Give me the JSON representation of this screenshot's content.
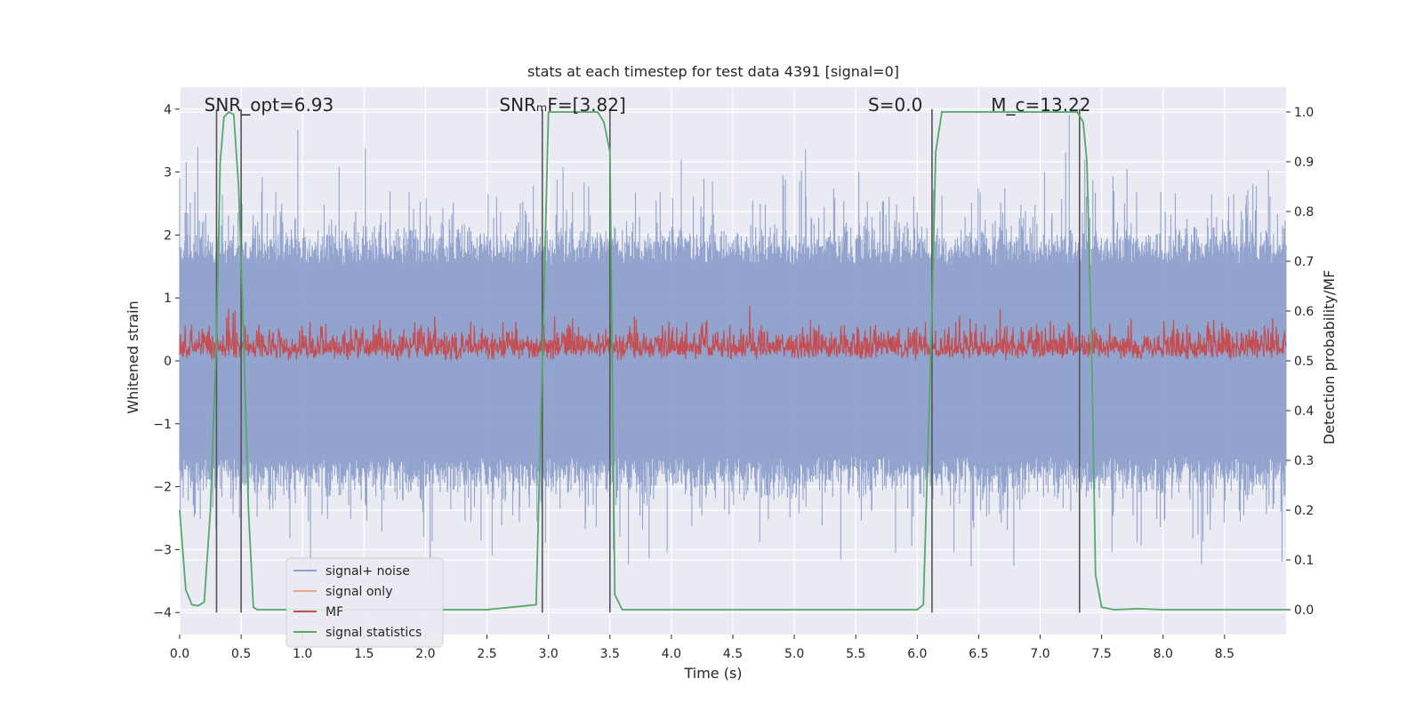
{
  "chart_data": {
    "type": "line",
    "title": "stats at each timestep for test data 4391 [signal=0]",
    "xlabel": "Time (s)",
    "ylabel": "Whitened strain",
    "y2label": "Detection probability/MF",
    "xlim": [
      0.0,
      9.0
    ],
    "ylim": [
      -4.35,
      4.35
    ],
    "y2lim": [
      -0.05,
      1.05
    ],
    "xticks": [
      "0.0",
      "0.5",
      "1.0",
      "1.5",
      "2.0",
      "2.5",
      "3.0",
      "3.5",
      "4.0",
      "4.5",
      "5.0",
      "5.5",
      "6.0",
      "6.5",
      "7.0",
      "7.5",
      "8.0",
      "8.5"
    ],
    "yticks": [
      "4",
      "3",
      "2",
      "1",
      "0",
      "−1",
      "−2",
      "−3",
      "−4"
    ],
    "y2ticks": [
      "1.0",
      "0.9",
      "0.8",
      "0.7",
      "0.6",
      "0.5",
      "0.4",
      "0.3",
      "0.2",
      "0.1",
      "0.0"
    ],
    "grid": true,
    "legend_position": "lower-left",
    "annotations": [
      {
        "text": "SNR_opt=6.93",
        "x": 0.2,
        "y": 4.0
      },
      {
        "text": "SNRₘF=[3.82]",
        "x": 2.6,
        "y": 4.0
      },
      {
        "text": "S=0.0",
        "x": 5.6,
        "y": 4.0
      },
      {
        "text": "M_c=13.22",
        "x": 6.6,
        "y": 4.0
      }
    ],
    "vertical_markers": [
      0.3,
      0.5,
      2.95,
      3.5,
      6.12,
      7.32
    ],
    "series": [
      {
        "name": "signal+ noise",
        "color": "#8da0cb",
        "description": "whitened noise, dense band about ±1.6 with spikes to ±4",
        "envelope_typical": 1.6,
        "envelope_max": 4.0
      },
      {
        "name": "signal only",
        "color": "#e9a78a",
        "values": []
      },
      {
        "name": "MF",
        "color": "#c44e52",
        "axis": "right",
        "range": [
          0.5,
          0.63
        ]
      },
      {
        "name": "signal statistics",
        "color": "#55a868",
        "axis": "right",
        "x": [
          0.0,
          0.05,
          0.1,
          0.15,
          0.2,
          0.25,
          0.3,
          0.33,
          0.36,
          0.4,
          0.44,
          0.48,
          0.52,
          0.56,
          0.6,
          0.63,
          0.7,
          1.0,
          1.5,
          2.0,
          2.5,
          2.9,
          2.95,
          3.0,
          3.1,
          3.2,
          3.3,
          3.4,
          3.45,
          3.5,
          3.54,
          3.6,
          3.65,
          4.0,
          5.0,
          6.0,
          6.05,
          6.12,
          6.15,
          6.2,
          6.5,
          7.0,
          7.3,
          7.35,
          7.38,
          7.42,
          7.45,
          7.5,
          7.6,
          7.8,
          8.0,
          8.5,
          9.0
        ],
        "values": [
          0.2,
          0.04,
          0.01,
          0.008,
          0.015,
          0.2,
          0.55,
          0.9,
          0.99,
          1.0,
          0.995,
          0.85,
          0.55,
          0.2,
          0.005,
          0.0,
          0.0,
          0.0,
          0.0,
          0.0,
          0.0,
          0.01,
          0.5,
          1.0,
          1.0,
          1.0,
          1.0,
          1.0,
          0.98,
          0.92,
          0.03,
          0.0,
          0.0,
          0.0,
          0.0,
          0.0,
          0.01,
          0.6,
          0.92,
          1.0,
          1.0,
          1.0,
          1.0,
          0.98,
          0.9,
          0.5,
          0.07,
          0.005,
          0.0,
          0.002,
          0.0,
          0.0,
          0.0
        ]
      }
    ]
  }
}
